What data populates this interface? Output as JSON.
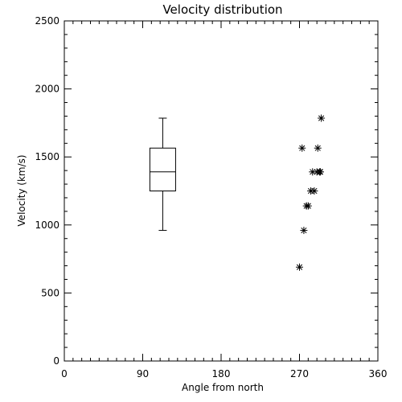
{
  "chart_data": {
    "type": "box-and-scatter",
    "title": "Velocity distribution",
    "xlabel": "Angle from north",
    "ylabel": "Velocity (km/s)",
    "xlim": [
      0,
      360
    ],
    "ylim": [
      0,
      2500
    ],
    "x_ticks": [
      0,
      90,
      180,
      270,
      360
    ],
    "y_ticks": [
      0,
      500,
      1000,
      1500,
      2000,
      2500
    ],
    "grid": false,
    "box": {
      "x": 113,
      "min": 960,
      "q1": 1250,
      "median": 1390,
      "q3": 1565,
      "max": 1785
    },
    "points": {
      "marker": "asterisk",
      "x": [
        270,
        273,
        275,
        278,
        280,
        283,
        285,
        287,
        290,
        291,
        295,
        293,
        294
      ],
      "y": [
        690,
        1565,
        960,
        1140,
        1140,
        1250,
        1390,
        1250,
        1390,
        1565,
        1785,
        1390,
        1390
      ]
    }
  }
}
